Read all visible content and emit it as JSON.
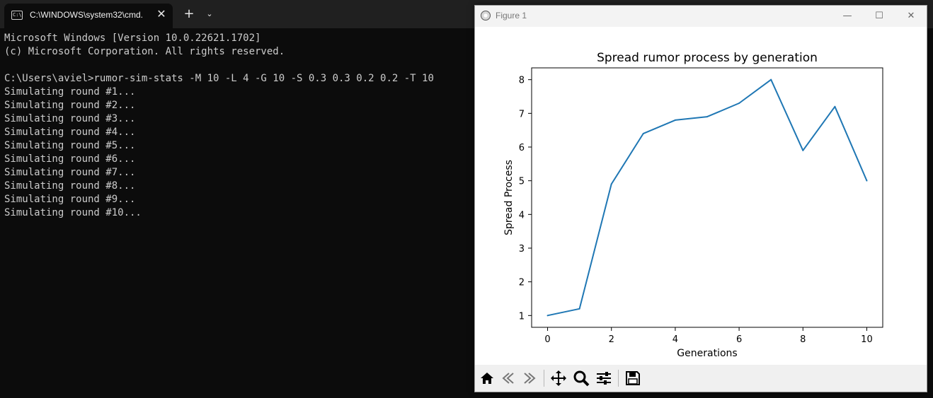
{
  "terminal": {
    "tab_title": "C:\\WINDOWS\\system32\\cmd.",
    "tab_icon_text": "C:\\",
    "lines": [
      "Microsoft Windows [Version 10.0.22621.1702]",
      "(c) Microsoft Corporation. All rights reserved.",
      "",
      "C:\\Users\\aviel>rumor-sim-stats -M 10 -L 4 -G 10 -S 0.3 0.3 0.2 0.2 -T 10",
      "Simulating round #1...",
      "Simulating round #2...",
      "Simulating round #3...",
      "Simulating round #4...",
      "Simulating round #5...",
      "Simulating round #6...",
      "Simulating round #7...",
      "Simulating round #8...",
      "Simulating round #9...",
      "Simulating round #10..."
    ],
    "background": "#0c0c0c",
    "text_color": "#cccccc"
  },
  "figure_window": {
    "title": "Figure 1",
    "toolbar": [
      "home-icon",
      "back-icon",
      "forward-icon",
      "pan-icon",
      "zoom-icon",
      "configure-icon",
      "save-icon"
    ]
  },
  "chart_data": {
    "type": "line",
    "title": "Spread rumor process by generation",
    "xlabel": "Generations",
    "ylabel": "Spread Process",
    "x": [
      0,
      1,
      2,
      3,
      4,
      5,
      6,
      7,
      8,
      9,
      10
    ],
    "series": [
      {
        "values": [
          1.0,
          1.2,
          4.9,
          6.4,
          6.8,
          6.9,
          7.3,
          8.0,
          5.9,
          7.2,
          5.0
        ],
        "color": "#1f77b4"
      }
    ],
    "xticks": [
      0,
      2,
      4,
      6,
      8,
      10
    ],
    "yticks": [
      1,
      2,
      3,
      4,
      5,
      6,
      7,
      8
    ],
    "xlim": [
      -0.5,
      10.5
    ],
    "ylim": [
      0.65,
      8.35
    ],
    "grid": false
  }
}
